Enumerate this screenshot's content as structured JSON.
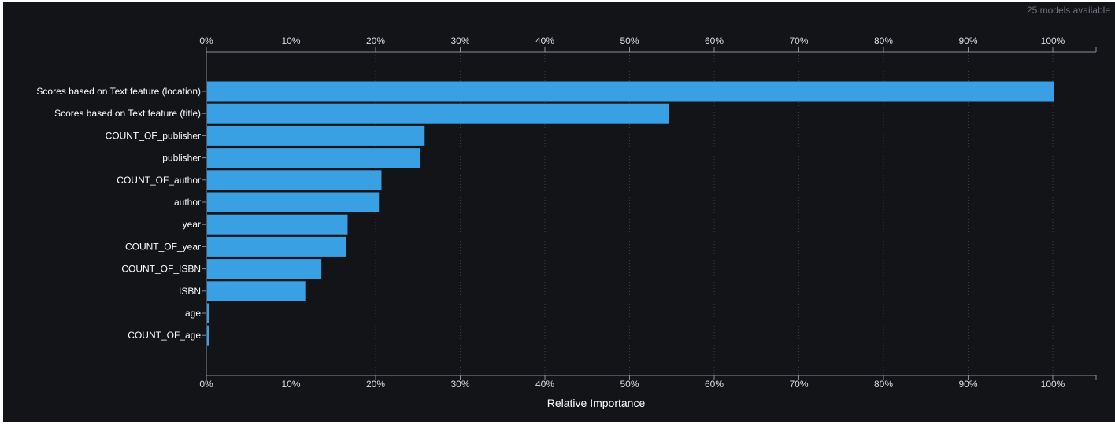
{
  "header": {
    "models_available": "25 models available"
  },
  "chart_data": {
    "type": "bar",
    "orientation": "horizontal",
    "categories": [
      "Scores based on Text feature (location)",
      "Scores based on Text feature (title)",
      "COUNT_OF_publisher",
      "publisher",
      "COUNT_OF_author",
      "author",
      "year",
      "COUNT_OF_year",
      "COUNT_OF_ISBN",
      "ISBN",
      "age",
      "COUNT_OF_age"
    ],
    "values": [
      100,
      54.6,
      25.7,
      25.2,
      20.6,
      20.3,
      16.6,
      16.4,
      13.5,
      11.6,
      0.15,
      0.15
    ],
    "xlabel": "Relative Importance",
    "ylabel": "",
    "xlim": [
      0,
      100
    ],
    "xticks": [
      "0%",
      "10%",
      "20%",
      "30%",
      "40%",
      "50%",
      "60%",
      "70%",
      "80%",
      "90%",
      "100%"
    ],
    "tick_positions": "top-and-bottom",
    "grid": "vertical-dotted",
    "legend": "none",
    "colors": {
      "bar": "#3aa0e4",
      "background": "#121418",
      "grid": "#3a3f46",
      "text": "#ffffff"
    }
  }
}
